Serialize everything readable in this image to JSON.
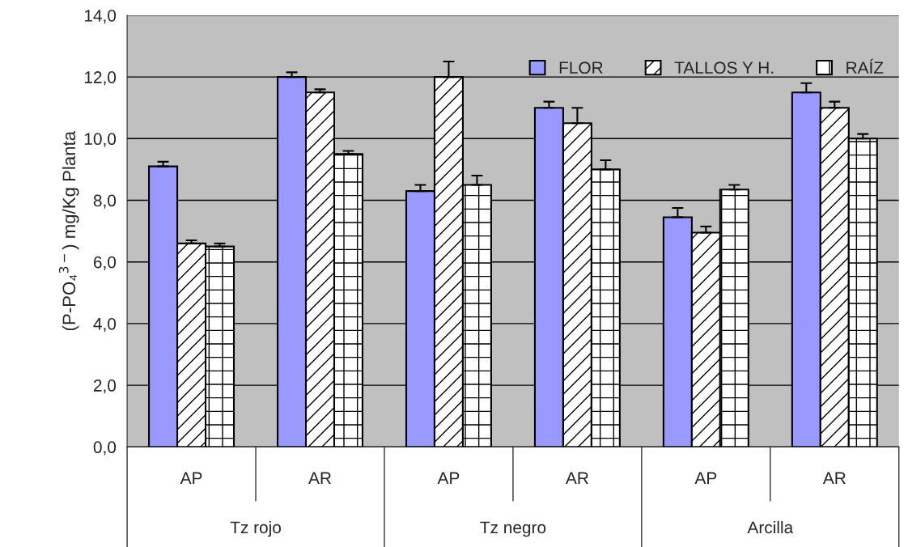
{
  "chart_data": {
    "type": "bar",
    "ylabel": "(P-PO₄$^{3−}$) mg/Kg Planta",
    "categories": [
      "AP",
      "AR",
      "AP",
      "AR",
      "AP",
      "AR"
    ],
    "annotations": [
      "Tz rojo",
      "Tz negro",
      "Arcilla"
    ],
    "series": [
      {
        "name": "FLOR",
        "color": "#9999ff",
        "values": [
          9.1,
          12.0,
          8.3,
          11.0,
          7.45,
          11.5
        ],
        "errors": [
          0.15,
          0.15,
          0.2,
          0.2,
          0.3,
          0.3
        ]
      },
      {
        "name": "TALLOS Y H.",
        "color": "#ffffff",
        "values": [
          6.6,
          11.5,
          12.0,
          10.5,
          6.95,
          11.0
        ],
        "errors": [
          0.1,
          0.1,
          0.5,
          0.5,
          0.2,
          0.2
        ]
      },
      {
        "name": "RAÍZ",
        "color": "#ffffff",
        "values": [
          6.5,
          9.5,
          8.5,
          9.0,
          8.35,
          10.0
        ],
        "errors": [
          0.1,
          0.1,
          0.3,
          0.3,
          0.15,
          0.15
        ]
      }
    ],
    "ylim": [
      0,
      14
    ],
    "yticks": [
      {
        "value": 0,
        "label": "0,0"
      },
      {
        "value": 2,
        "label": "2,0"
      },
      {
        "value": 4,
        "label": "4,0"
      },
      {
        "value": 6,
        "label": "6,0"
      },
      {
        "value": 8,
        "label": "8,0"
      },
      {
        "value": 10,
        "label": "10,0"
      },
      {
        "value": 12,
        "label": "12,0"
      },
      {
        "value": 14,
        "label": "14,0"
      }
    ],
    "grid": "y",
    "legend": "top right"
  }
}
